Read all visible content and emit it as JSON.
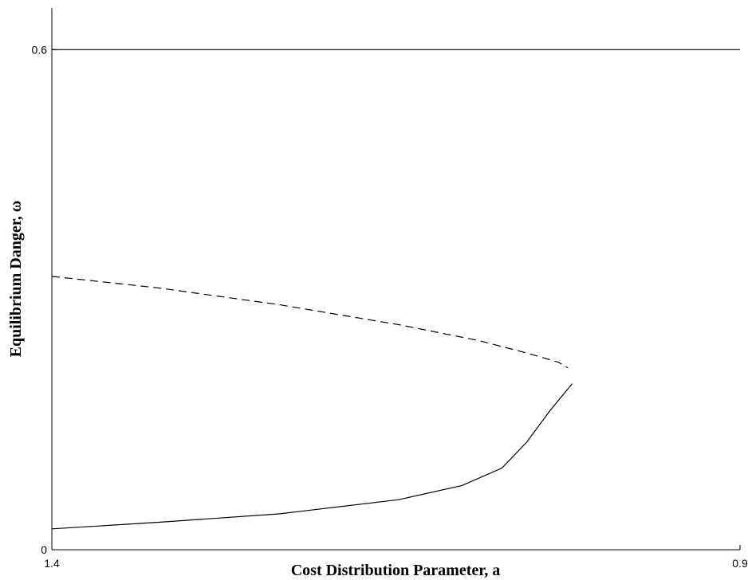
{
  "chart_data": {
    "type": "line",
    "x_label": "Cost Distribution Parameter, a",
    "y_label": "Equilibrium Danger, ω",
    "xlim": [
      1.4,
      0.9
    ],
    "xticks": [
      1.4,
      0.9
    ],
    "ylim": [
      0,
      0.65
    ],
    "yticks": [
      0,
      0.6
    ],
    "series": [
      {
        "color": "#000000",
        "dash": false,
        "x": [
          1.4,
          0.9
        ],
        "values": [
          0.6,
          0.6
        ]
      },
      {
        "color": "#000000",
        "dash": true,
        "x": [
          1.4,
          1.322,
          1.235,
          1.148,
          1.09,
          1.055,
          1.032,
          1.025
        ],
        "values": [
          0.328,
          0.314,
          0.294,
          0.27,
          0.251,
          0.236,
          0.225,
          0.218
        ]
      },
      {
        "color": "#000000",
        "dash": false,
        "x": [
          1.4,
          1.322,
          1.235,
          1.148,
          1.102,
          1.073,
          1.055,
          1.038,
          1.022
        ],
        "values": [
          0.025,
          0.033,
          0.043,
          0.06,
          0.077,
          0.098,
          0.129,
          0.167,
          0.199
        ]
      }
    ]
  }
}
